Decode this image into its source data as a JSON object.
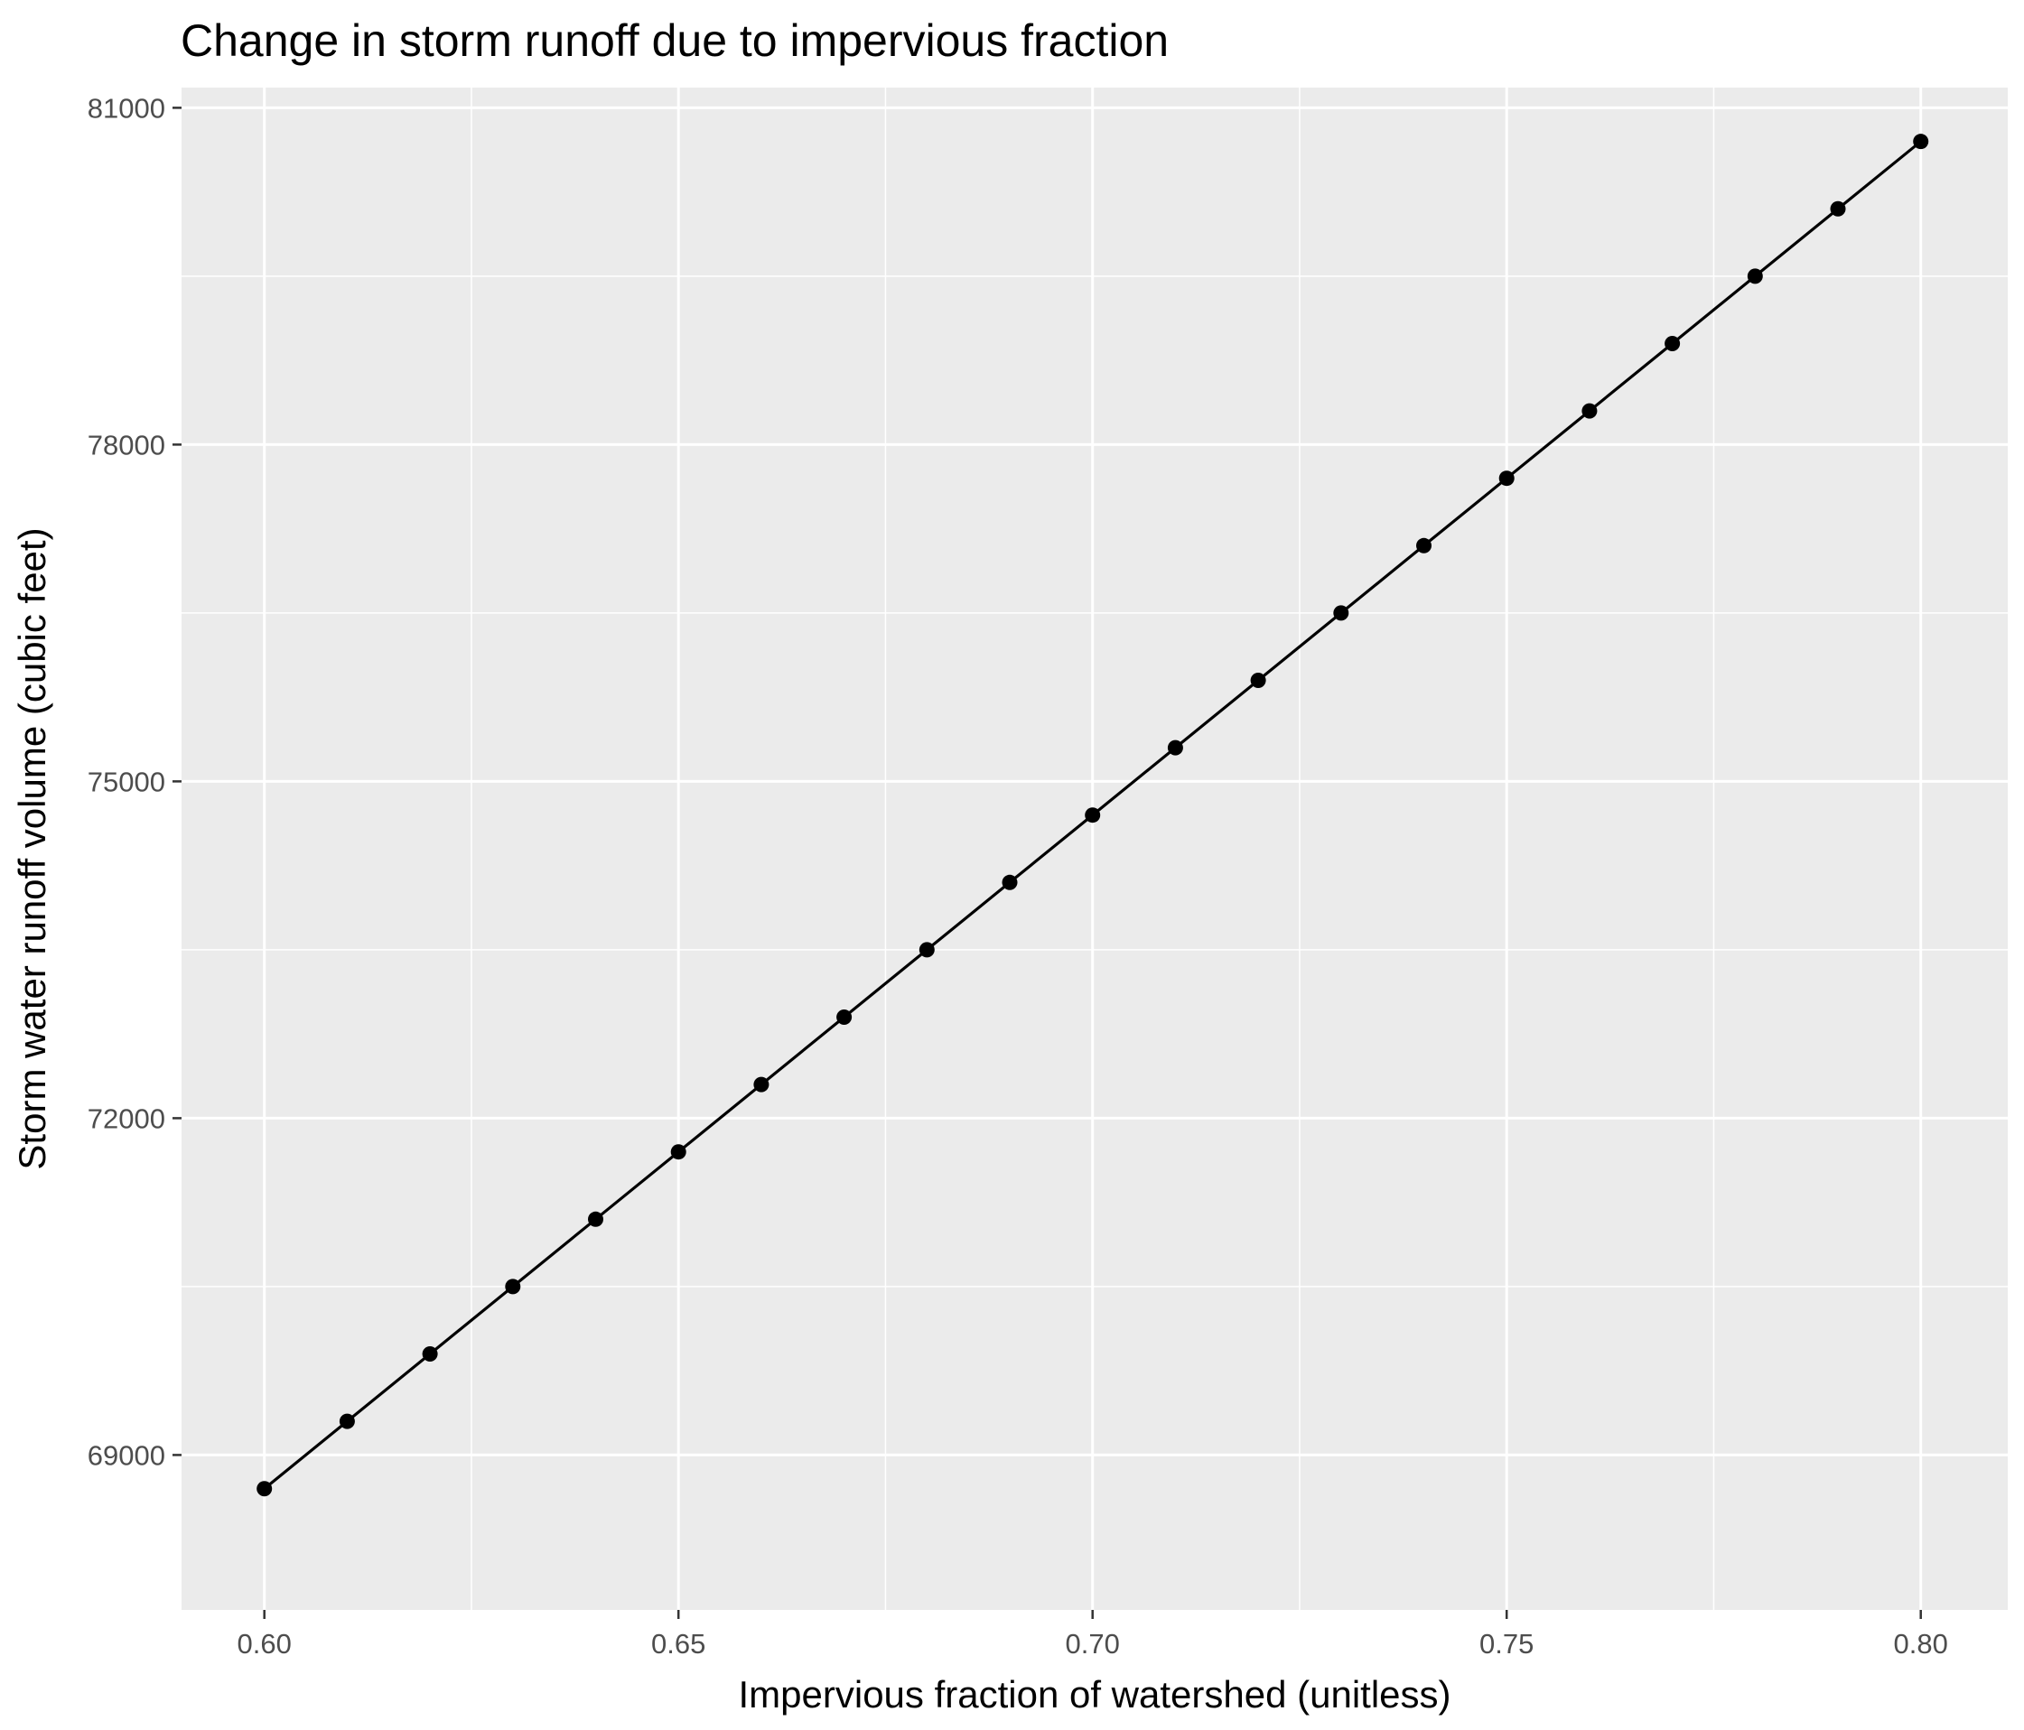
{
  "chart_data": {
    "type": "line",
    "title": "Change in storm runoff due to impervious fraction",
    "xlabel": "Impervious fraction of watershed (unitless)",
    "ylabel": "Storm water runoff volume (cubic feet)",
    "xlim": [
      0.59,
      0.8105
    ],
    "ylim": [
      67620,
      81180
    ],
    "x_ticks": [
      0.6,
      0.65,
      0.7,
      0.75,
      0.8
    ],
    "x_tick_labels": [
      "0.60",
      "0.65",
      "0.70",
      "0.75",
      "0.80"
    ],
    "y_ticks": [
      69000,
      72000,
      75000,
      78000,
      81000
    ],
    "y_tick_labels": [
      "69000",
      "72000",
      "75000",
      "78000",
      "81000"
    ],
    "grid": true,
    "markers": true,
    "series": [
      {
        "x": [
          0.6,
          0.61,
          0.62,
          0.63,
          0.64,
          0.65,
          0.66,
          0.67,
          0.68,
          0.69,
          0.7,
          0.71,
          0.72,
          0.73,
          0.74,
          0.75,
          0.76,
          0.77,
          0.78,
          0.79,
          0.8
        ],
        "y": [
          68700,
          69300,
          69900,
          70500,
          71100,
          71700,
          72300,
          72900,
          73500,
          74100,
          74700,
          75300,
          75900,
          76500,
          77100,
          77700,
          78300,
          78900,
          79500,
          80100,
          80700
        ]
      }
    ],
    "colors": {
      "panel_background": "#ebebeb",
      "grid_major": "#ffffff",
      "line": "#000000",
      "point": "#000000",
      "tick_label": "#4d4d4d",
      "tick_mark": "#333333"
    }
  }
}
